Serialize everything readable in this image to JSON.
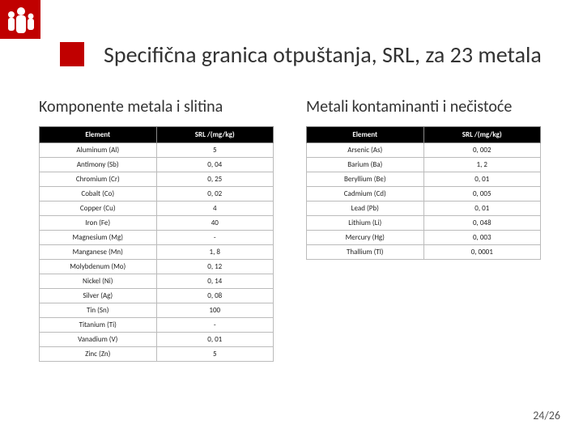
{
  "title": "Specifična granica otpuštanja, SRL, za 23 metala",
  "subtitle_left": "Komponente metala i slitina",
  "subtitle_right": "Metali kontaminanti i nečistoće",
  "page_number": "24/26",
  "accent_color": "#c00000",
  "hdr_element": "Element",
  "hdr_srl": "SRL /(mg/kg)",
  "left_table": {
    "rows": [
      {
        "el": "Aluminum (Al)",
        "val": "5"
      },
      {
        "el": "Antimony (Sb)",
        "val": "0, 04"
      },
      {
        "el": "Chromium (Cr)",
        "val": "0, 25"
      },
      {
        "el": "Cobalt (Co)",
        "val": "0, 02"
      },
      {
        "el": "Copper (Cu)",
        "val": "4"
      },
      {
        "el": "Iron (Fe)",
        "val": "40"
      },
      {
        "el": "Magnesium (Mg)",
        "val": "-"
      },
      {
        "el": "Manganese (Mn)",
        "val": "1, 8"
      },
      {
        "el": "Molybdenum (Mo)",
        "val": "0, 12"
      },
      {
        "el": "Nickel (Ni)",
        "val": "0, 14"
      },
      {
        "el": "Silver (Ag)",
        "val": "0, 08"
      },
      {
        "el": "Tin (Sn)",
        "val": "100"
      },
      {
        "el": "Titanium (Ti)",
        "val": "-"
      },
      {
        "el": "Vanadium (V)",
        "val": "0, 01"
      },
      {
        "el": "Zinc (Zn)",
        "val": "5"
      }
    ]
  },
  "right_table": {
    "rows": [
      {
        "el": "Arsenic (As)",
        "val": "0, 002"
      },
      {
        "el": "Barium (Ba)",
        "val": "1, 2"
      },
      {
        "el": "Beryllium (Be)",
        "val": "0, 01"
      },
      {
        "el": "Cadmium (Cd)",
        "val": "0, 005"
      },
      {
        "el": "Lead (Pb)",
        "val": "0, 01"
      },
      {
        "el": "Lithium (Li)",
        "val": "0, 048"
      },
      {
        "el": "Mercury (Hg)",
        "val": "0, 003"
      },
      {
        "el": "Thallium (Tl)",
        "val": "0, 0001"
      }
    ]
  }
}
